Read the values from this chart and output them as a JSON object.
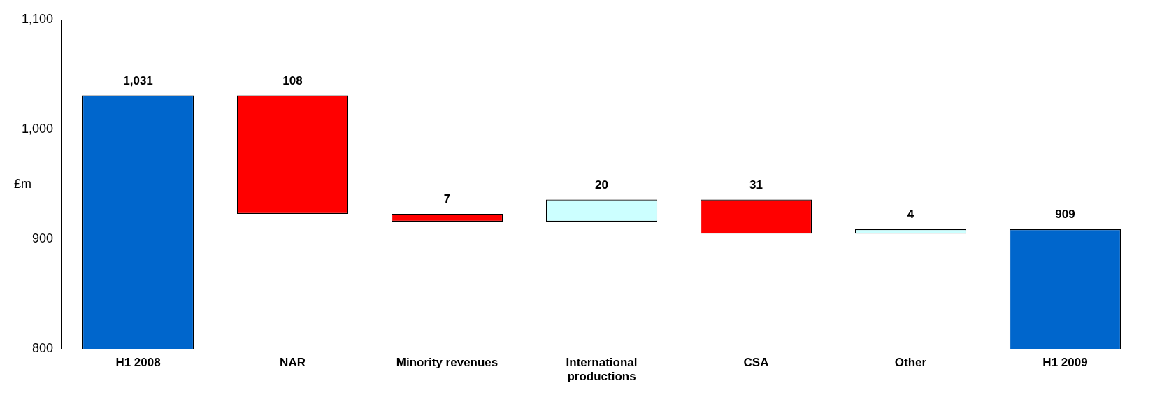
{
  "chart_data": {
    "type": "bar",
    "ylabel": "£m",
    "categories": [
      "H1 2008",
      "NAR",
      "Minority revenues",
      "International productions",
      "CSA",
      "Other",
      "H1 2009"
    ],
    "values": [
      1031,
      108,
      7,
      20,
      31,
      4,
      909
    ],
    "base": [
      null,
      923,
      916,
      916,
      905,
      905,
      null
    ],
    "colors": [
      "#0066cc",
      "#ff0000",
      "#ff0000",
      "#ccffff",
      "#ff0000",
      "#ccffff",
      "#0066cc"
    ],
    "value_labels": [
      "1,031",
      "108",
      "7",
      "20",
      "31",
      "4",
      "909"
    ],
    "ylim": [
      800,
      1100
    ],
    "yticks": [
      {
        "value": 800,
        "label": "800"
      },
      {
        "value": 900,
        "label": "900"
      },
      {
        "value": 1000,
        "label": "1,000"
      },
      {
        "value": 1100,
        "label": "1,100"
      }
    ],
    "grid": false,
    "legend": false
  }
}
